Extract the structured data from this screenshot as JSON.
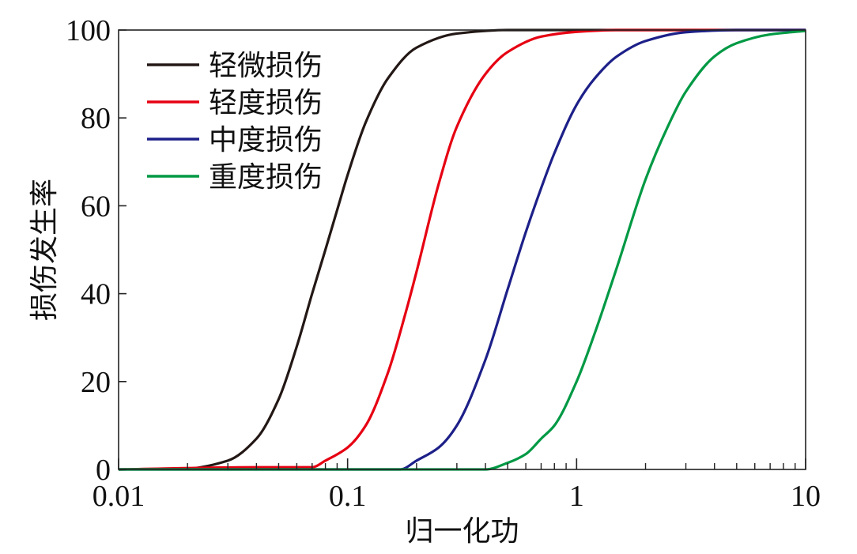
{
  "chart_data": {
    "type": "line",
    "xlabel": "归一化功",
    "ylabel": "损伤发生率",
    "xscale": "log",
    "xlim": [
      0.01,
      10
    ],
    "ylim": [
      0,
      100
    ],
    "x_ticks": [
      0.01,
      0.1,
      1,
      10
    ],
    "x_tick_labels": [
      "0.01",
      "0.1",
      "1",
      "10"
    ],
    "y_ticks": [
      0,
      20,
      40,
      60,
      80,
      100
    ],
    "y_tick_labels": [
      "0",
      "20",
      "40",
      "60",
      "80",
      "100"
    ],
    "grid": false,
    "legend_position": "top-left",
    "series": [
      {
        "name": "轻微损伤",
        "color": "#231815",
        "x": [
          0.01,
          0.02,
          0.03,
          0.04,
          0.05,
          0.06,
          0.07,
          0.08,
          0.09,
          0.1,
          0.12,
          0.15,
          0.2,
          0.3,
          0.5,
          1,
          2,
          5,
          10
        ],
        "y": [
          0,
          0.2,
          2,
          7,
          16,
          28,
          40,
          50,
          59,
          67,
          79,
          89,
          96,
          99.2,
          100,
          100,
          100,
          100,
          100
        ]
      },
      {
        "name": "轻度损伤",
        "color": "#e60012",
        "x": [
          0.01,
          0.04,
          0.07,
          0.08,
          0.1,
          0.12,
          0.15,
          0.18,
          0.2,
          0.25,
          0.3,
          0.4,
          0.5,
          0.7,
          1,
          1.5,
          2,
          5,
          10
        ],
        "y": [
          0,
          0.5,
          0.5,
          2,
          5,
          10,
          22,
          36,
          45,
          65,
          78,
          90,
          95,
          98.5,
          99.6,
          100,
          100,
          100,
          100
        ]
      },
      {
        "name": "中度损伤",
        "color": "#1d2088",
        "x": [
          0.01,
          0.17,
          0.2,
          0.25,
          0.3,
          0.4,
          0.5,
          0.6,
          0.7,
          0.8,
          1,
          1.2,
          1.5,
          2,
          3,
          5,
          10
        ],
        "y": [
          0,
          0,
          2,
          5,
          10,
          25,
          41,
          54,
          64,
          72,
          83,
          89,
          94,
          97.5,
          99.5,
          100,
          100
        ]
      },
      {
        "name": "重度损伤",
        "color": "#009944",
        "x": [
          0.01,
          0.4,
          0.5,
          0.6,
          0.7,
          0.8,
          1,
          1.2,
          1.5,
          2,
          2.5,
          3,
          4,
          5,
          7,
          10
        ],
        "y": [
          0,
          0,
          1.5,
          3.5,
          7,
          10,
          20,
          31,
          46,
          66,
          78,
          86,
          94,
          97,
          99,
          99.8
        ]
      }
    ]
  }
}
